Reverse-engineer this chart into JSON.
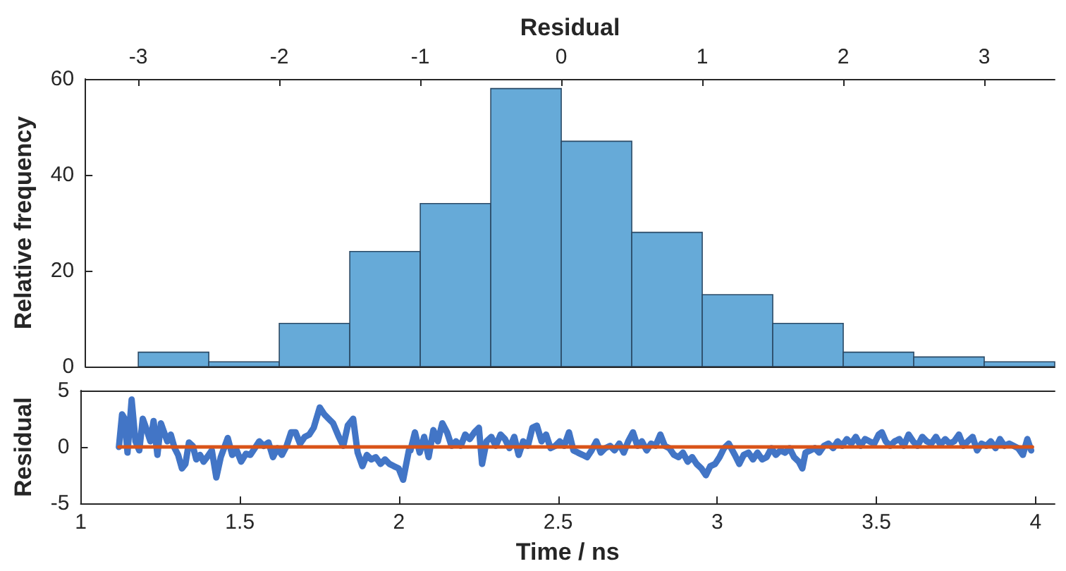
{
  "chart_data": [
    {
      "type": "histogram",
      "xlabel": "Residual",
      "ylabel": "Relative frequency",
      "bins": [
        -3,
        -2.5,
        -2,
        -1.5,
        -1,
        -0.5,
        0,
        0.5,
        1,
        1.5,
        2,
        2.5,
        3,
        3.5
      ],
      "values": [
        3,
        1,
        9,
        24,
        34,
        58,
        47,
        28,
        15,
        9,
        3,
        2,
        1
      ],
      "color": "#66aad8",
      "xlim": [
        -3.375,
        3.5
      ],
      "xticks": [
        -3,
        -2,
        -1,
        0,
        1,
        2,
        3
      ],
      "ylim": [
        0,
        60
      ],
      "yticks": [
        0,
        20,
        40,
        60
      ]
    },
    {
      "type": "line",
      "xlabel": "Time / ns",
      "ylabel": "Residual",
      "marker": "none",
      "xlim": [
        1,
        4.06
      ],
      "xticks": [
        1,
        1.5,
        2,
        2.5,
        3,
        3.5,
        4
      ],
      "ylim": [
        -5,
        5
      ],
      "yticks": [
        -5,
        0,
        5
      ],
      "series": [
        {
          "color": "#4275c6",
          "x": [
            1.12,
            1.13,
            1.138,
            1.147,
            1.16,
            1.172,
            1.184,
            1.195,
            1.205,
            1.219,
            1.229,
            1.241,
            1.252,
            1.262,
            1.272,
            1.283,
            1.295,
            1.306,
            1.318,
            1.329,
            1.34,
            1.352,
            1.363,
            1.375,
            1.386,
            1.397,
            1.412,
            1.426,
            1.44,
            1.462,
            1.476,
            1.49,
            1.504,
            1.519,
            1.533,
            1.547,
            1.561,
            1.575,
            1.59,
            1.604,
            1.618,
            1.632,
            1.647,
            1.661,
            1.675,
            1.689,
            1.704,
            1.718,
            1.732,
            1.751,
            1.765,
            1.779,
            1.793,
            1.811,
            1.825,
            1.839,
            1.856,
            1.87,
            1.885,
            1.899,
            1.913,
            1.927,
            1.942,
            1.956,
            1.97,
            1.984,
            1.999,
            2.013,
            2.031,
            2.036,
            2.05,
            2.065,
            2.079,
            2.093,
            2.108,
            2.122,
            2.136,
            2.151,
            2.165,
            2.179,
            2.194,
            2.208,
            2.222,
            2.237,
            2.251,
            2.261,
            2.275,
            2.29,
            2.304,
            2.319,
            2.333,
            2.347,
            2.362,
            2.376,
            2.39,
            2.405,
            2.419,
            2.433,
            2.448,
            2.462,
            2.476,
            2.491,
            2.505,
            2.519,
            2.534,
            2.548,
            2.562,
            2.577,
            2.591,
            2.605,
            2.62,
            2.634,
            2.648,
            2.663,
            2.677,
            2.692,
            2.706,
            2.72,
            2.735,
            2.749,
            2.763,
            2.778,
            2.792,
            2.806,
            2.821,
            2.835,
            2.849,
            2.864,
            2.878,
            2.892,
            2.907,
            2.921,
            2.935,
            2.95,
            2.964,
            2.978,
            2.993,
            3.007,
            3.021,
            3.036,
            3.055,
            3.069,
            3.083,
            3.098,
            3.112,
            3.126,
            3.141,
            3.155,
            3.17,
            3.184,
            3.198,
            3.213,
            3.227,
            3.241,
            3.256,
            3.267,
            3.277,
            3.292,
            3.306,
            3.32,
            3.335,
            3.349,
            3.364,
            3.378,
            3.392,
            3.407,
            3.421,
            3.435,
            3.45,
            3.464,
            3.478,
            3.493,
            3.507,
            3.517,
            3.529,
            3.543,
            3.557,
            3.572,
            3.586,
            3.601,
            3.615,
            3.629,
            3.644,
            3.658,
            3.672,
            3.687,
            3.701,
            3.716,
            3.73,
            3.744,
            3.759,
            3.773,
            3.787,
            3.802,
            3.816,
            3.83,
            3.845,
            3.859,
            3.874,
            3.888,
            3.902,
            3.917,
            3.931,
            3.945,
            3.96,
            3.974,
            3.986
          ],
          "values": [
            0,
            2.9,
            2.5,
            -0.5,
            4.2,
            0.5,
            -0.3,
            2.5,
            1.7,
            0.5,
            2.3,
            -0.7,
            2.1,
            1.3,
            0.5,
            1.1,
            -0.1,
            -0.7,
            -1.9,
            -1.5,
            0.4,
            0.1,
            -1.1,
            -0.7,
            -1.3,
            -0.9,
            -0.3,
            -2.7,
            -0.9,
            0.8,
            -0.7,
            -0.3,
            -1.3,
            -0.6,
            -0.7,
            -0.1,
            0.5,
            0.1,
            0.4,
            -0.9,
            -0.1,
            -0.7,
            0.1,
            1.3,
            1.3,
            0.3,
            0.9,
            1.1,
            1.7,
            3.5,
            2.9,
            2.5,
            2.1,
            0.9,
            0.1,
            1.9,
            2.5,
            -0.5,
            -1.7,
            -0.7,
            -1.1,
            -0.9,
            -1.5,
            -1.1,
            -1.5,
            -1.7,
            -1.9,
            -2.9,
            -0.3,
            -0.3,
            1.3,
            -0.5,
            0.9,
            -0.9,
            1.5,
            0.5,
            2.1,
            1.3,
            0.1,
            0.5,
            0.1,
            1.1,
            0.7,
            1.3,
            1.7,
            -1.5,
            0.5,
            0.9,
            0.1,
            1.1,
            0.7,
            -0.1,
            0.9,
            -0.7,
            0.5,
            0.1,
            1.7,
            1.9,
            0.5,
            1.1,
            -0.1,
            0.1,
            0.5,
            0.1,
            1.3,
            -0.3,
            -0.5,
            -0.7,
            -0.9,
            -0.3,
            0.5,
            -0.5,
            -0.1,
            0.1,
            -0.3,
            0.3,
            -0.5,
            0.5,
            1.3,
            0.1,
            0.5,
            -0.3,
            0.3,
            0.1,
            1.1,
            0.1,
            -0.1,
            -0.7,
            -0.9,
            -0.5,
            -1.3,
            -0.9,
            -1.5,
            -1.9,
            -2.5,
            -1.7,
            -1.5,
            -0.9,
            -0.1,
            0.3,
            -0.7,
            -1.5,
            -0.7,
            -0.5,
            -1.1,
            -0.5,
            -1.1,
            -0.9,
            -0.1,
            -0.7,
            -0.3,
            -0.5,
            -0.1,
            -0.9,
            -1.3,
            -1.9,
            -0.5,
            -0.3,
            -0.1,
            -0.5,
            0.1,
            0.3,
            -0.1,
            0.5,
            0.1,
            0.7,
            0.3,
            0.9,
            0.1,
            0.7,
            0.5,
            0.3,
            1.1,
            1.3,
            0.5,
            0.1,
            0.5,
            0.7,
            0.1,
            1.1,
            0.5,
            0.1,
            0.9,
            0.5,
            0.3,
            0.9,
            0.2,
            0.7,
            0.3,
            0.5,
            1.1,
            0.1,
            0.5,
            0.9,
            -0.3,
            0.3,
            0.1,
            0.5,
            -0.1,
            0.7,
            0.1,
            0.3,
            0.1,
            -0.1,
            -0.7,
            0.7,
            -0.3
          ]
        },
        {
          "color": "#d95319",
          "x": [
            1.12,
            3.99
          ],
          "values": [
            0,
            0
          ]
        }
      ]
    }
  ]
}
